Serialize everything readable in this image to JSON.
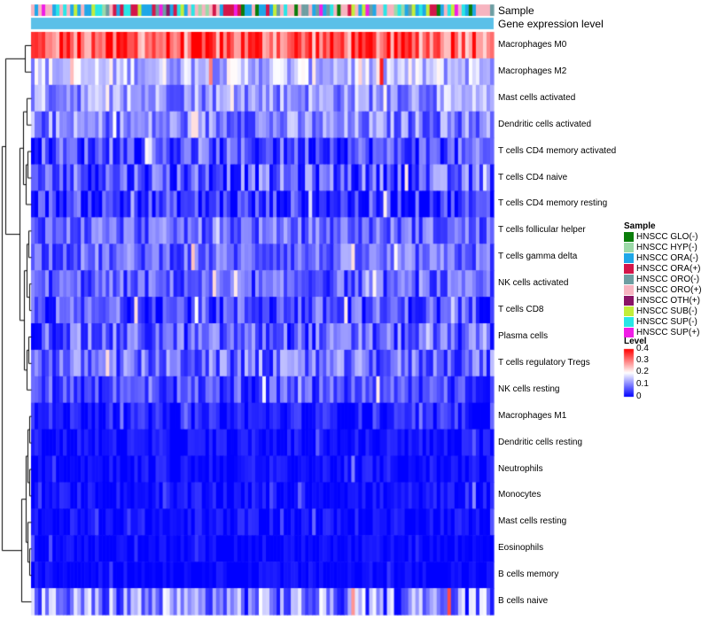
{
  "chart_data": {
    "type": "heatmap",
    "title": "",
    "annotations": [
      {
        "name": "Sample",
        "label": "Sample"
      },
      {
        "name": "Gene expression level",
        "label": "Gene expression level"
      }
    ],
    "rows": [
      {
        "name": "Macrophages M0",
        "mean": 0.33,
        "spread": 0.1
      },
      {
        "name": "Macrophages M2",
        "mean": 0.15,
        "spread": 0.07
      },
      {
        "name": "Mast cells activated",
        "mean": 0.12,
        "spread": 0.07
      },
      {
        "name": "Dendritic cells activated",
        "mean": 0.1,
        "spread": 0.07
      },
      {
        "name": "T cells CD4 memory activated",
        "mean": 0.06,
        "spread": 0.07
      },
      {
        "name": "T cells CD4 naive",
        "mean": 0.07,
        "spread": 0.08
      },
      {
        "name": "T cells CD4 memory resting",
        "mean": 0.04,
        "spread": 0.07
      },
      {
        "name": "T cells follicular helper",
        "mean": 0.08,
        "spread": 0.06
      },
      {
        "name": "T cells gamma delta",
        "mean": 0.08,
        "spread": 0.06
      },
      {
        "name": "NK cells activated",
        "mean": 0.07,
        "spread": 0.06
      },
      {
        "name": "T cells CD8",
        "mean": 0.06,
        "spread": 0.07
      },
      {
        "name": "Plasma cells",
        "mean": 0.07,
        "spread": 0.07
      },
      {
        "name": "T cells regulatory  Tregs",
        "mean": 0.08,
        "spread": 0.07
      },
      {
        "name": "NK cells resting",
        "mean": 0.06,
        "spread": 0.06
      },
      {
        "name": "Macrophages M1",
        "mean": 0.02,
        "spread": 0.04
      },
      {
        "name": "Dendritic cells resting",
        "mean": 0.01,
        "spread": 0.03
      },
      {
        "name": "Neutrophils",
        "mean": 0.01,
        "spread": 0.03
      },
      {
        "name": "Monocytes",
        "mean": 0.01,
        "spread": 0.03
      },
      {
        "name": "Mast cells resting",
        "mean": 0.01,
        "spread": 0.03
      },
      {
        "name": "Eosinophils",
        "mean": 0.005,
        "spread": 0.02
      },
      {
        "name": "B cells memory",
        "mean": 0.005,
        "spread": 0.02
      },
      {
        "name": "B cells naive",
        "mean": 0.1,
        "spread": 0.1
      }
    ],
    "n_samples": 130,
    "sample_legend": {
      "title": "Sample",
      "items": [
        {
          "label": "HNSCC GLO(-)",
          "color": "#0a7d0a"
        },
        {
          "label": "HNSCC HYP(-)",
          "color": "#9cd9a8"
        },
        {
          "label": "HNSCC ORA(-)",
          "color": "#1fa7e8"
        },
        {
          "label": "HNSCC ORA(+)",
          "color": "#d4164a"
        },
        {
          "label": "HNSCC ORO(-)",
          "color": "#6d9ea2"
        },
        {
          "label": "HNSCC ORO(+)",
          "color": "#f7b4c0"
        },
        {
          "label": "HNSCC OTH(+)",
          "color": "#8a1466"
        },
        {
          "label": "HNSCC SUB(-)",
          "color": "#c3ee3a"
        },
        {
          "label": "HNSCC SUP(-)",
          "color": "#29e6e6"
        },
        {
          "label": "HNSCC SUP(+)",
          "color": "#f01ee6"
        }
      ]
    },
    "gene_expression_bar_color": "#5bc0e8",
    "level_legend": {
      "title": "Level",
      "ticks": [
        "0.4",
        "0.3",
        "0.2",
        "0.1",
        "0"
      ],
      "range": [
        0,
        0.4
      ],
      "colors": {
        "low": "#0000ff",
        "mid": "#ffffff",
        "high": "#ff0000"
      }
    }
  }
}
